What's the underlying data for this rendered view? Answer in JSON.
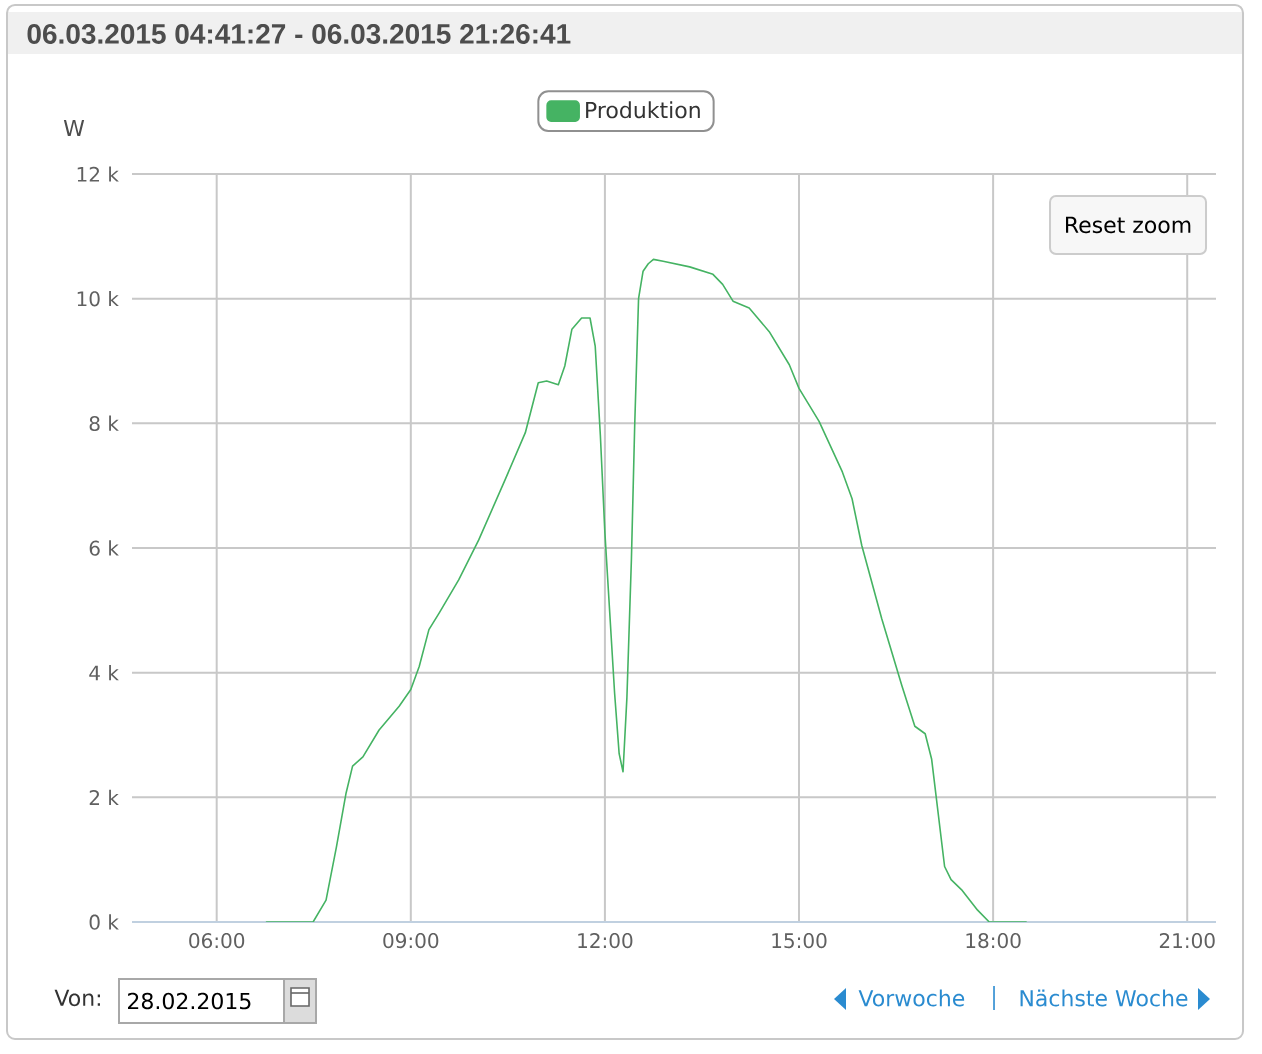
{
  "chart_data": {
    "type": "line",
    "title": "06.03.2015 04:41:27 - 06.03.2015 21:26:41",
    "ylabel": "W",
    "x": [
      6.77,
      7.49,
      7.69,
      7.85,
      8.0,
      8.1,
      8.26,
      8.51,
      8.82,
      9.0,
      9.13,
      9.28,
      9.44,
      9.74,
      10.05,
      10.46,
      10.77,
      10.97,
      11.1,
      11.28,
      11.38,
      11.49,
      11.64,
      11.77,
      11.85,
      11.93,
      12.0,
      12.15,
      12.22,
      12.28,
      12.34,
      12.41,
      12.46,
      12.52,
      12.59,
      12.67,
      12.75,
      12.9,
      13.31,
      13.67,
      13.82,
      13.98,
      14.23,
      14.54,
      14.85,
      15.0,
      15.31,
      15.67,
      15.82,
      15.97,
      16.28,
      16.59,
      16.79,
      16.95,
      17.05,
      17.15,
      17.25,
      17.35,
      17.51,
      17.76,
      17.94,
      18.51
    ],
    "series": [
      {
        "name": "Produktion",
        "color": "#45b363",
        "values": [
          0,
          0,
          350,
          1200,
          2070,
          2500,
          2650,
          3080,
          3460,
          3730,
          4100,
          4690,
          4960,
          5490,
          6130,
          7100,
          7850,
          8650,
          8680,
          8620,
          8920,
          9510,
          9690,
          9690,
          9240,
          7800,
          6240,
          3670,
          2700,
          2410,
          3600,
          5830,
          7950,
          10000,
          10440,
          10560,
          10630,
          10600,
          10510,
          10390,
          10230,
          9960,
          9850,
          9470,
          8940,
          8560,
          8030,
          7220,
          6790,
          6040,
          4860,
          3790,
          3140,
          3020,
          2610,
          1750,
          890,
          680,
          520,
          190,
          0,
          0
        ]
      }
    ],
    "xlim": [
      4.691,
      21.445
    ],
    "ylim": [
      0,
      12000
    ],
    "xticks": [
      {
        "value": 6,
        "label": "06:00"
      },
      {
        "value": 9,
        "label": "09:00"
      },
      {
        "value": 12,
        "label": "12:00"
      },
      {
        "value": 15,
        "label": "15:00"
      },
      {
        "value": 18,
        "label": "18:00"
      },
      {
        "value": 21,
        "label": "21:00"
      }
    ],
    "yticks": [
      {
        "value": 0,
        "label": "0 k"
      },
      {
        "value": 2000,
        "label": "2 k"
      },
      {
        "value": 4000,
        "label": "4 k"
      },
      {
        "value": 6000,
        "label": "6 k"
      },
      {
        "value": 8000,
        "label": "8 k"
      },
      {
        "value": 10000,
        "label": "10 k"
      },
      {
        "value": 12000,
        "label": "12 k"
      }
    ],
    "grid": true,
    "legend": "top",
    "annotations": [
      "Reset zoom",
      "Von:",
      "28.02.2015",
      "Vorwoche",
      "Nächste Woche"
    ]
  }
}
